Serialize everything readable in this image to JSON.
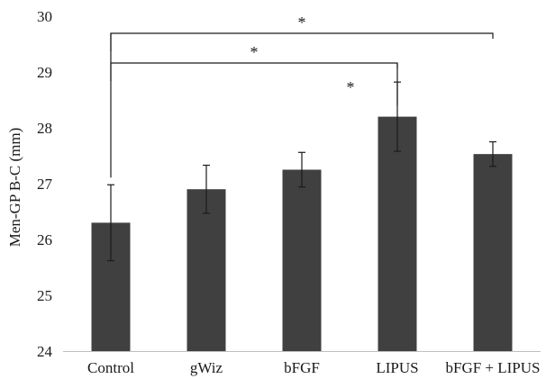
{
  "chart_data": {
    "type": "bar",
    "title": "",
    "xlabel": "",
    "ylabel": "Men-GP B-C (mm)",
    "ylim": [
      24,
      30
    ],
    "yticks": [
      "24",
      "25",
      "26",
      "27",
      "28",
      "29",
      "30"
    ],
    "grid": false,
    "categories": [
      "Control",
      "gWiz",
      "bFGF",
      "LIPUS",
      "bFGF + LIPUS"
    ],
    "values": [
      26.3,
      26.9,
      27.25,
      28.2,
      27.53
    ],
    "errors": [
      0.68,
      0.43,
      0.31,
      0.62,
      0.22
    ],
    "bar_color": "#404040",
    "significance": [
      {
        "from": "Control",
        "to": "bFGF + LIPUS",
        "label": "*"
      },
      {
        "from": "Control",
        "to": "LIPUS",
        "label": "*"
      },
      {
        "at": "LIPUS",
        "label": "*"
      }
    ]
  }
}
